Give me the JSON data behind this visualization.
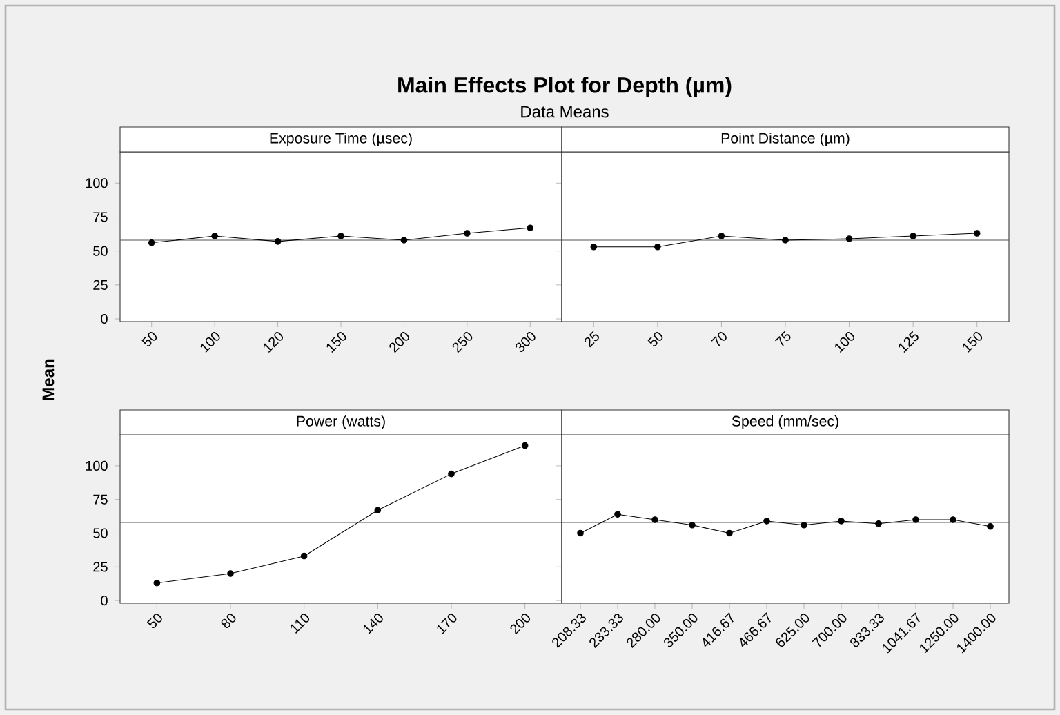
{
  "chart_data": [
    {
      "type": "line",
      "title": "Main Effects Plot for Depth (µm)",
      "subtitle": "Data Means",
      "ylabel": "Mean",
      "xlabel": "Exposure Time (µsec)",
      "categories": [
        "50",
        "100",
        "120",
        "150",
        "200",
        "250",
        "300"
      ],
      "values": [
        56,
        61,
        57,
        61,
        58,
        63,
        67
      ],
      "color": "#000000",
      "ylim": [
        -2,
        123
      ],
      "yticks": [
        0,
        25,
        50,
        75,
        100
      ],
      "ref_lines": [
        {
          "axis": "y",
          "value": 58,
          "color": "#555555"
        }
      ],
      "marker": "circle"
    },
    {
      "type": "line",
      "xlabel": "Point Distance (µm)",
      "categories": [
        "25",
        "50",
        "70",
        "75",
        "100",
        "125",
        "150"
      ],
      "values": [
        53,
        53,
        61,
        58,
        59,
        61,
        63
      ],
      "color": "#000000",
      "ylim": [
        -2,
        123
      ],
      "yticks": [
        0,
        25,
        50,
        75,
        100
      ],
      "ref_lines": [
        {
          "axis": "y",
          "value": 58,
          "color": "#555555"
        }
      ],
      "marker": "circle",
      "tick_labels": "x"
    },
    {
      "type": "line",
      "xlabel": "Power (watts)",
      "categories": [
        "50",
        "80",
        "110",
        "140",
        "170",
        "200"
      ],
      "values": [
        13,
        20,
        33,
        67,
        94,
        115
      ],
      "color": "#000000",
      "ylim": [
        -2,
        123
      ],
      "yticks": [
        0,
        25,
        50,
        75,
        100
      ],
      "ref_lines": [
        {
          "axis": "y",
          "value": 58,
          "color": "#555555"
        }
      ],
      "marker": "circle"
    },
    {
      "type": "line",
      "xlabel": "Speed (mm/sec)",
      "categories": [
        "208.33",
        "233.33",
        "280.00",
        "350.00",
        "416.67",
        "466.67",
        "625.00",
        "700.00",
        "833.33",
        "1041.67",
        "1250.00",
        "1400.00"
      ],
      "values": [
        50,
        64,
        60,
        56,
        50,
        59,
        56,
        59,
        57,
        60,
        60,
        55
      ],
      "color": "#000000",
      "ylim": [
        -2,
        123
      ],
      "yticks": [
        0,
        25,
        50,
        75,
        100
      ],
      "ref_lines": [
        {
          "axis": "y",
          "value": 58,
          "color": "#555555"
        }
      ],
      "marker": "circle",
      "tick_labels": "x"
    }
  ]
}
